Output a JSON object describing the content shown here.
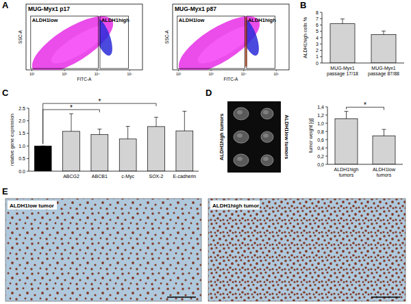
{
  "panel_labels": [
    "A",
    "B",
    "C",
    "D",
    "E"
  ],
  "flow_plots": [
    {
      "title": "MUG-Myx1 p17",
      "x_label": "FITC-A",
      "y_label": "SSC-A",
      "gates": [
        "ALDH1low",
        "ALDH1high"
      ],
      "x_tick_labels": [
        "10²",
        "10³",
        "10⁴",
        "10⁵"
      ]
    },
    {
      "title": "MUG-Myx1 p87",
      "x_label": "FITC-A",
      "y_label": "SSC-A",
      "gates": [
        "ALDH1low",
        "ALDH1high"
      ],
      "x_tick_labels": [
        "10²",
        "10³",
        "10⁴",
        "10⁵"
      ]
    }
  ],
  "chart_data": [
    {
      "type": "bar",
      "categories": [
        "MUG-Myx1 passage 17/18",
        "MUG-Myx1 passage 87/88"
      ],
      "values": [
        6.2,
        4.5
      ],
      "errors": [
        0.75,
        0.55
      ],
      "color": "#d3d3d3",
      "ylabel": "ALDH1high cells %",
      "ylim": [
        0,
        8
      ],
      "yticks": [
        0,
        1,
        2,
        3,
        4,
        5,
        6,
        7,
        8
      ]
    },
    {
      "type": "bar",
      "categories": [
        null,
        "ABCG2",
        "ABCB1",
        "c-Myc",
        "SOX-2",
        "E-cadherin"
      ],
      "values": [
        1,
        1.58,
        1.45,
        1.28,
        1.77,
        1.6
      ],
      "errors": [
        0,
        0.7,
        0.22,
        0.5,
        0.37,
        0.78
      ],
      "colors": [
        "#000000",
        "#d3d3d3",
        "#d3d3d3",
        "#d3d3d3",
        "#d3d3d3",
        "#d3d3d3"
      ],
      "ylabel": "relative gene expression",
      "ylim": [
        0,
        2.5
      ],
      "yticks": [
        {
          "value": 0,
          "label": "0.0"
        },
        {
          "value": 0.5,
          "label": "0.5"
        },
        {
          "value": 1,
          "label": "1.0"
        },
        {
          "value": 1.5,
          "label": "1.5"
        },
        {
          "value": 2,
          "label": "2.0"
        },
        {
          "value": 2.5,
          "label": "2.5"
        }
      ],
      "annotations": [
        {
          "label": "*",
          "between": [
            0,
            2
          ]
        },
        {
          "label": "*",
          "between": [
            0,
            4
          ]
        }
      ]
    },
    {
      "type": "bar",
      "categories": [
        "ALDH1high tumors",
        "ALDH1low tumors"
      ],
      "values": [
        1.11,
        0.69
      ],
      "errors": [
        0.18,
        0.16
      ],
      "color": "#d3d3d3",
      "ylabel": "tumor weight [g]",
      "ylim": [
        0,
        1.4
      ],
      "yticks": [
        {
          "value": 0,
          "label": "0,0"
        },
        {
          "value": 0.2,
          "label": "0,2"
        },
        {
          "value": 0.4,
          "label": "0,4"
        },
        {
          "value": 0.6,
          "label": "0,6"
        },
        {
          "value": 0.8,
          "label": "0,8"
        },
        {
          "value": 1,
          "label": "1,0"
        },
        {
          "value": 1.2,
          "label": "1,2"
        },
        {
          "value": 1.4,
          "label": "1,4"
        }
      ],
      "annotations": [
        {
          "label": "*",
          "between": [
            0,
            1
          ]
        }
      ]
    }
  ],
  "tumor_photo": {
    "labels": [
      "ALDH1high tumors",
      "ALDH1low tumors"
    ]
  },
  "histology": [
    {
      "label": "ALDH1low tumor"
    },
    {
      "label": "ALDH1high tumor"
    }
  ]
}
